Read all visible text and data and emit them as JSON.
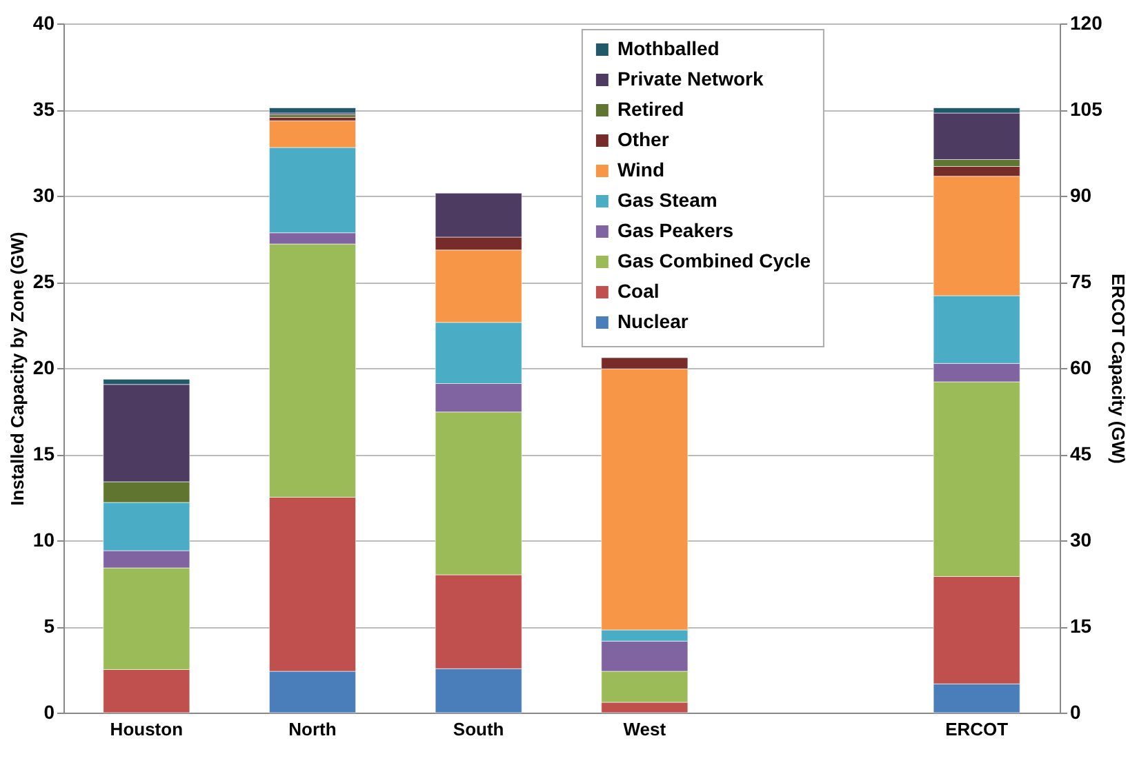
{
  "chart_data": {
    "type": "bar",
    "stacked": true,
    "ylabel": "Installed Capacity by Zone (GW)",
    "y2label": "ERCOT Capacity (GW)",
    "categories": [
      "Houston",
      "North",
      "South",
      "West",
      null,
      "ERCOT"
    ],
    "ylim": [
      0,
      40
    ],
    "yticks": [
      0,
      5,
      10,
      15,
      20,
      25,
      30,
      35,
      40
    ],
    "y2lim": [
      0,
      120
    ],
    "y2ticks": [
      0,
      15,
      30,
      45,
      60,
      75,
      90,
      105,
      120
    ],
    "grid": "y",
    "legend": "top",
    "series": [
      {
        "name": "Nuclear",
        "color": "#4a7ebb",
        "values": [
          null,
          2.4,
          2.55,
          null,
          null,
          null
        ]
      },
      {
        "name": "Coal",
        "color": "#c0504d",
        "values": [
          2.5,
          10.1,
          5.45,
          0.6,
          null,
          null
        ]
      },
      {
        "name": "Gas Combined Cycle",
        "color": "#9bbb59",
        "values": [
          5.9,
          14.7,
          9.45,
          1.8,
          null,
          null
        ]
      },
      {
        "name": "Gas Peakers",
        "color": "#8064a2",
        "values": [
          1.0,
          0.65,
          1.65,
          1.75,
          null,
          null
        ]
      },
      {
        "name": "Gas Steam",
        "color": "#4bacc6",
        "values": [
          2.8,
          4.95,
          3.55,
          0.65,
          null,
          null
        ]
      },
      {
        "name": "Wind",
        "color": "#f79646",
        "values": [
          null,
          1.55,
          4.2,
          15.15,
          null,
          null
        ]
      },
      {
        "name": "Other",
        "color": "#772c2a",
        "values": [
          null,
          0.2,
          0.75,
          0.65,
          null,
          null
        ]
      },
      {
        "name": "Retired",
        "color": "#5f7530",
        "values": [
          1.2,
          0.15,
          null,
          null,
          null,
          null
        ]
      },
      {
        "name": "Private Network",
        "color": "#4d3b62",
        "values": [
          5.65,
          0.1,
          2.55,
          null,
          null,
          null
        ]
      },
      {
        "name": "Mothballed",
        "color": "#215968",
        "values": [
          0.3,
          0.3,
          null,
          null,
          null,
          null
        ]
      },
      {
        "color": "#4a7ebb",
        "axis": "y2",
        "values": [
          null,
          null,
          null,
          null,
          null,
          5.0
        ]
      },
      {
        "color": "#c0504d",
        "axis": "y2",
        "values": [
          null,
          null,
          null,
          null,
          null,
          18.7
        ]
      },
      {
        "color": "#9bbb59",
        "axis": "y2",
        "values": [
          null,
          null,
          null,
          null,
          null,
          33.9
        ]
      },
      {
        "color": "#8064a2",
        "axis": "y2",
        "values": [
          null,
          null,
          null,
          null,
          null,
          3.2
        ]
      },
      {
        "color": "#4bacc6",
        "axis": "y2",
        "values": [
          null,
          null,
          null,
          null,
          null,
          11.8
        ]
      },
      {
        "color": "#f79646",
        "axis": "y2",
        "values": [
          null,
          null,
          null,
          null,
          null,
          20.8
        ]
      },
      {
        "color": "#772c2a",
        "axis": "y2",
        "values": [
          null,
          null,
          null,
          null,
          null,
          1.7
        ]
      },
      {
        "color": "#5f7530",
        "axis": "y2",
        "values": [
          null,
          null,
          null,
          null,
          null,
          1.2
        ]
      },
      {
        "color": "#4d3b62",
        "axis": "y2",
        "values": [
          null,
          null,
          null,
          null,
          null,
          8.1
        ]
      },
      {
        "color": "#215968",
        "axis": "y2",
        "values": [
          null,
          null,
          null,
          null,
          null,
          0.9
        ]
      }
    ]
  }
}
